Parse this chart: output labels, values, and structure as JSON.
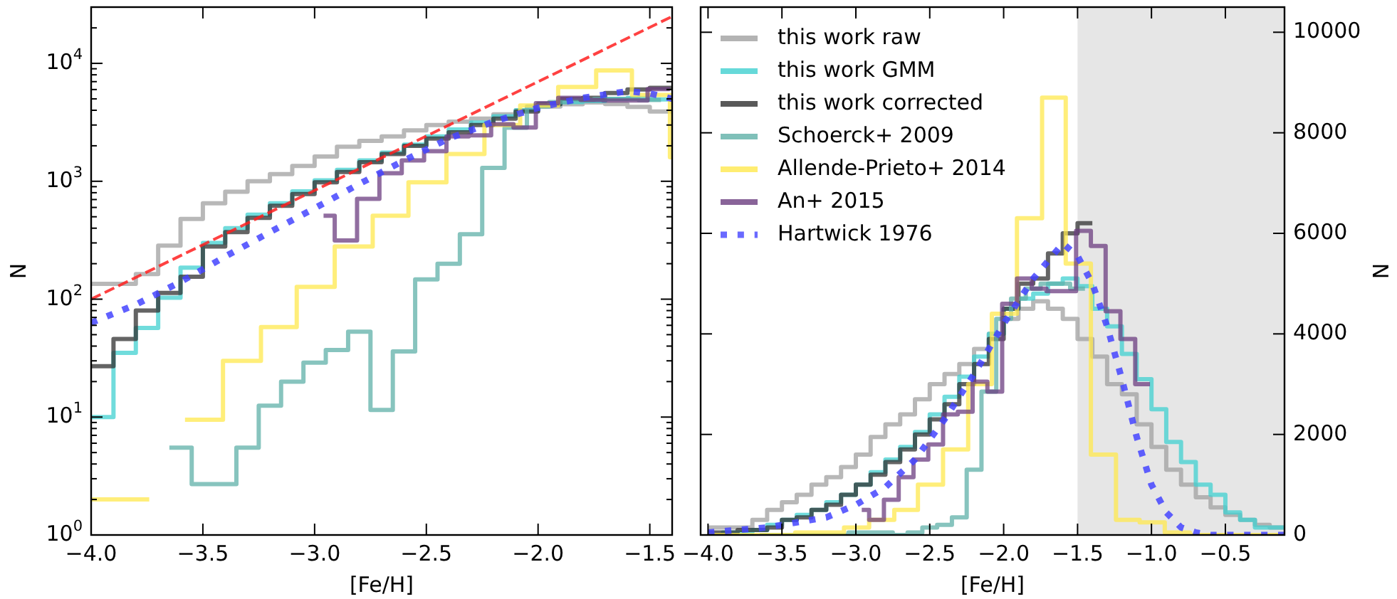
{
  "chart_data": [
    {
      "type": "step",
      "xlabel": "[Fe/H]",
      "ylabel": "N",
      "log": true,
      "xlim": [
        -4.0,
        -1.4
      ],
      "ylim": [
        1,
        30000
      ],
      "xticks": [
        {
          "value": -4.0,
          "label": "−4.0"
        },
        {
          "value": -3.5,
          "label": "−3.5"
        },
        {
          "value": -3.0,
          "label": "−3.0"
        },
        {
          "value": -2.5,
          "label": "−2.5"
        },
        {
          "value": -2.0,
          "label": "−2.0"
        },
        {
          "value": -1.5,
          "label": "−1.5"
        }
      ],
      "yticks": [
        {
          "value": 1,
          "label": "10$^{0}$"
        },
        {
          "value": 2,
          "label": null
        },
        {
          "value": 3,
          "label": null
        },
        {
          "value": 4,
          "label": null
        },
        {
          "value": 5,
          "label": null
        },
        {
          "value": 6,
          "label": null
        },
        {
          "value": 7,
          "label": null
        },
        {
          "value": 8,
          "label": null
        },
        {
          "value": 9,
          "label": null
        },
        {
          "value": 10,
          "label": "10$^{1}$"
        },
        {
          "value": 20,
          "label": null
        },
        {
          "value": 30,
          "label": null
        },
        {
          "value": 40,
          "label": null
        },
        {
          "value": 50,
          "label": null
        },
        {
          "value": 60,
          "label": null
        },
        {
          "value": 70,
          "label": null
        },
        {
          "value": 80,
          "label": null
        },
        {
          "value": 90,
          "label": null
        },
        {
          "value": 100,
          "label": "10$^{2}$"
        },
        {
          "value": 200,
          "label": null
        },
        {
          "value": 300,
          "label": null
        },
        {
          "value": 400,
          "label": null
        },
        {
          "value": 500,
          "label": null
        },
        {
          "value": 600,
          "label": null
        },
        {
          "value": 700,
          "label": null
        },
        {
          "value": 800,
          "label": null
        },
        {
          "value": 900,
          "label": null
        },
        {
          "value": 1000,
          "label": "10$^{3}$"
        },
        {
          "value": 2000,
          "label": null
        },
        {
          "value": 3000,
          "label": null
        },
        {
          "value": 4000,
          "label": null
        },
        {
          "value": 5000,
          "label": null
        },
        {
          "value": 6000,
          "label": null
        },
        {
          "value": 7000,
          "label": null
        },
        {
          "value": 8000,
          "label": null
        },
        {
          "value": 9000,
          "label": null
        },
        {
          "value": 10000,
          "label": "10$^{4}$"
        },
        {
          "value": 20000,
          "label": null
        },
        {
          "value": 30000,
          "label": null
        }
      ],
      "series": [
        {
          "color": "#a0a0a0",
          "x": [
            -4.0,
            -3.9,
            -3.8,
            -3.7,
            -3.6,
            -3.5,
            -3.4,
            -3.3,
            -3.2,
            -3.1,
            -3.0,
            -2.9,
            -2.8,
            -2.7,
            -2.6,
            -2.5,
            -2.4,
            -2.3,
            -2.2,
            -2.1,
            -2.0,
            -1.9,
            -1.8,
            -1.7,
            -1.6,
            -1.5,
            -1.4
          ],
          "values": [
            135,
            135,
            163,
            285,
            480,
            650,
            815,
            1000,
            1150,
            1350,
            1620,
            1960,
            2200,
            2400,
            2700,
            3000,
            3200,
            3400,
            3700,
            4000,
            4300,
            4500,
            4660,
            4520,
            4280,
            3900,
            3900
          ]
        },
        {
          "color": "#40d0d0",
          "x": [
            -4.0,
            -3.9,
            -3.8,
            -3.7,
            -3.6,
            -3.5,
            -3.4,
            -3.3,
            -3.2,
            -3.1,
            -3.0,
            -2.9,
            -2.8,
            -2.7,
            -2.6,
            -2.5,
            -2.4,
            -2.3,
            -2.2,
            -2.1,
            -2.0,
            -1.9,
            -1.8,
            -1.7,
            -1.6,
            -1.5,
            -1.4
          ],
          "values": [
            10,
            35,
            57,
            103,
            185,
            300,
            400,
            520,
            650,
            820,
            1020,
            1250,
            1500,
            1750,
            2050,
            2400,
            2750,
            3150,
            3550,
            4000,
            4500,
            4700,
            4800,
            5000,
            5090,
            4950,
            4950
          ]
        },
        {
          "color": "#303030",
          "x": [
            -4.0,
            -3.9,
            -3.8,
            -3.7,
            -3.6,
            -3.5,
            -3.4,
            -3.3,
            -3.2,
            -3.1,
            -3.0,
            -2.9,
            -2.8,
            -2.7,
            -2.6,
            -2.5,
            -2.4,
            -2.3,
            -2.2,
            -2.1,
            -2.0,
            -1.9,
            -1.8,
            -1.7,
            -1.6,
            -1.5,
            -1.4
          ],
          "values": [
            27,
            46,
            80,
            113,
            155,
            280,
            370,
            490,
            620,
            780,
            980,
            1200,
            1450,
            1700,
            2000,
            2300,
            2600,
            3000,
            3400,
            3900,
            4500,
            5000,
            5100,
            5600,
            6000,
            6200,
            6200
          ]
        },
        {
          "color": "#5fb0a8",
          "x": [
            -3.65,
            -3.55,
            -3.45,
            -3.35,
            -3.25,
            -3.15,
            -3.05,
            -2.95,
            -2.85,
            -2.75,
            -2.65,
            -2.55,
            -2.45,
            -2.35,
            -2.25,
            -2.15,
            -2.05,
            -1.95,
            -1.85,
            -1.75,
            -1.65,
            -1.55,
            -1.45
          ],
          "values": [
            5.5,
            2.7,
            2.7,
            5.5,
            12.5,
            20,
            29,
            37,
            53,
            11.5,
            36,
            147,
            200,
            355,
            1300,
            2850,
            4300,
            4700,
            4900,
            5000,
            5000,
            4900,
            4900
          ]
        },
        {
          "color": "#ffe84d",
          "x": [
            -4.0,
            -3.91,
            -3.74,
            -3.58,
            -3.41,
            -3.24,
            -3.08,
            -2.91,
            -2.74,
            -2.58,
            -2.41,
            -2.24,
            -2.08,
            -1.91,
            -1.74,
            -1.58,
            -1.41,
            -1.4
          ],
          "values": [
            2,
            2,
            null,
            9.5,
            30,
            58,
            127,
            280,
            510,
            980,
            1700,
            3000,
            4400,
            6300,
            8700,
            5400,
            1600,
            1600
          ]
        },
        {
          "color": "#6c3d80",
          "x": [
            -2.96,
            -2.91,
            -2.81,
            -2.71,
            -2.61,
            -2.51,
            -2.41,
            -2.31,
            -2.21,
            -2.11,
            -2.01,
            -1.91,
            -1.81,
            -1.71,
            -1.61,
            -1.51,
            -1.41
          ],
          "values": [
            510,
            315,
            710,
            1170,
            1500,
            1800,
            2400,
            2450,
            3050,
            2860,
            4600,
            5100,
            4900,
            4850,
            4850,
            6040,
            6040
          ]
        },
        {
          "type": "line",
          "line_style": "dotted",
          "color": "#4444ff",
          "x": [
            -4.0,
            -3.8,
            -3.6,
            -3.4,
            -3.2,
            -3.0,
            -2.8,
            -2.6,
            -2.4,
            -2.2,
            -2.0,
            -1.8,
            -1.6,
            -1.5,
            -1.4
          ],
          "values": [
            63,
            90,
            140,
            230,
            370,
            590,
            950,
            1500,
            2300,
            3200,
            4200,
            5100,
            5800,
            5560,
            5000
          ]
        },
        {
          "type": "line",
          "line_style": "dashed",
          "color": "#ff2020",
          "x": [
            -4.0,
            -1.4
          ],
          "values": [
            100,
            25000
          ]
        }
      ]
    },
    {
      "type": "step",
      "xlabel": "[Fe/H]",
      "y2label": "N",
      "legend": "top left",
      "xlim": [
        -4.05,
        -0.1
      ],
      "y2lim": [
        0,
        10500
      ],
      "xticks": [
        {
          "value": -4.0,
          "label": "−4.0"
        },
        {
          "value": -3.5,
          "label": "−3.5"
        },
        {
          "value": -3.0,
          "label": "−3.0"
        },
        {
          "value": -2.5,
          "label": "−2.5"
        },
        {
          "value": -2.0,
          "label": "−2.0"
        },
        {
          "value": -1.5,
          "label": "−1.5"
        },
        {
          "value": -1.0,
          "label": "−1.0"
        },
        {
          "value": -0.5,
          "label": "−0.5"
        }
      ],
      "y2ticks": [
        0,
        2000,
        4000,
        6000,
        8000,
        10000
      ],
      "bands": [
        {
          "axis": "x",
          "from": -1.5,
          "to": -0.1,
          "color": "#e6e6e6"
        }
      ],
      "series": [
        {
          "name": "this work raw",
          "axis": "y2",
          "color": "#a0a0a0",
          "x": [
            -4.0,
            -3.9,
            -3.8,
            -3.7,
            -3.6,
            -3.5,
            -3.4,
            -3.3,
            -3.2,
            -3.1,
            -3.0,
            -2.9,
            -2.8,
            -2.7,
            -2.6,
            -2.5,
            -2.4,
            -2.3,
            -2.2,
            -2.1,
            -2.0,
            -1.9,
            -1.8,
            -1.7,
            -1.6,
            -1.5,
            -1.4,
            -1.3,
            -1.2,
            -1.1,
            -1.0,
            -0.9,
            -0.8,
            -0.7,
            -0.6,
            -0.5,
            -0.4,
            -0.3,
            -0.2,
            -0.1
          ],
          "values": [
            150,
            150,
            150,
            300,
            500,
            650,
            800,
            1000,
            1150,
            1350,
            1600,
            1950,
            2200,
            2400,
            2700,
            3000,
            3200,
            3400,
            3700,
            4000,
            4300,
            4500,
            4650,
            4500,
            4300,
            3900,
            3550,
            3000,
            2800,
            2200,
            1750,
            1300,
            1000,
            750,
            550,
            400,
            300,
            200,
            150,
            150
          ]
        },
        {
          "name": "this work GMM",
          "axis": "y2",
          "color": "#40d0d0",
          "x": [
            -4.0,
            -3.9,
            -3.8,
            -3.7,
            -3.6,
            -3.5,
            -3.4,
            -3.3,
            -3.2,
            -3.1,
            -3.0,
            -2.9,
            -2.8,
            -2.7,
            -2.6,
            -2.5,
            -2.4,
            -2.3,
            -2.2,
            -2.1,
            -2.0,
            -1.9,
            -1.8,
            -1.7,
            -1.6,
            -1.5,
            -1.4,
            -1.3,
            -1.2,
            -1.1,
            -1.0,
            -0.9,
            -0.8,
            -0.7,
            -0.6,
            -0.5,
            -0.4,
            -0.3,
            -0.2,
            -0.1
          ],
          "values": [
            0,
            50,
            50,
            100,
            200,
            300,
            400,
            500,
            650,
            800,
            1000,
            1250,
            1500,
            1750,
            2050,
            2400,
            2750,
            3150,
            3550,
            4000,
            4500,
            4700,
            4800,
            5000,
            5100,
            4950,
            4500,
            4150,
            3600,
            3100,
            2500,
            1850,
            1450,
            1000,
            800,
            450,
            300,
            150,
            150,
            150
          ]
        },
        {
          "name": "this work corrected",
          "axis": "y2",
          "color": "#303030",
          "x": [
            -4.0,
            -3.9,
            -3.8,
            -3.7,
            -3.6,
            -3.5,
            -3.4,
            -3.3,
            -3.2,
            -3.1,
            -3.0,
            -2.9,
            -2.8,
            -2.7,
            -2.6,
            -2.5,
            -2.4,
            -2.3,
            -2.2,
            -2.1,
            -2.0,
            -1.9,
            -1.8,
            -1.7,
            -1.6,
            -1.5,
            -1.4
          ],
          "values": [
            50,
            50,
            100,
            100,
            150,
            300,
            350,
            500,
            600,
            800,
            1000,
            1200,
            1450,
            1700,
            2000,
            2300,
            2600,
            3000,
            3400,
            3900,
            4500,
            5000,
            5100,
            5600,
            6000,
            6200,
            6200
          ]
        },
        {
          "name": "Schoerck+ 2009",
          "axis": "y2",
          "color": "#5fb0a8",
          "x": [
            -3.65,
            -3.55,
            -3.45,
            -3.35,
            -3.25,
            -3.15,
            -3.05,
            -2.95,
            -2.85,
            -2.75,
            -2.65,
            -2.55,
            -2.45,
            -2.35,
            -2.25,
            -2.15,
            -2.05,
            -1.95,
            -1.85,
            -1.75,
            -1.65,
            -1.55,
            -1.45
          ],
          "values": [
            0,
            0,
            0,
            0,
            0,
            0,
            50,
            50,
            50,
            0,
            50,
            150,
            200,
            350,
            1300,
            2850,
            4300,
            4700,
            4900,
            5000,
            5000,
            4900,
            4900
          ]
        },
        {
          "name": "Allende-Prieto+ 2014",
          "axis": "y2",
          "color": "#ffe84d",
          "x": [
            -4.0,
            -3.91,
            -3.74,
            -3.58,
            -3.41,
            -3.24,
            -3.08,
            -2.91,
            -2.74,
            -2.58,
            -2.41,
            -2.24,
            -2.08,
            -1.91,
            -1.74,
            -1.58,
            -1.41,
            -1.24,
            -1.08,
            -0.91,
            -0.74,
            -0.58,
            -0.41,
            -0.24,
            -0.1
          ],
          "values": [
            0,
            0,
            0,
            0,
            50,
            50,
            150,
            300,
            500,
            1000,
            1700,
            3000,
            4400,
            6300,
            8700,
            5400,
            1600,
            300,
            250,
            50,
            0,
            0,
            0,
            0,
            0
          ]
        },
        {
          "name": "An+ 2015",
          "axis": "y2",
          "color": "#6c3d80",
          "x": [
            -2.96,
            -2.91,
            -2.81,
            -2.71,
            -2.61,
            -2.51,
            -2.41,
            -2.31,
            -2.21,
            -2.11,
            -2.01,
            -1.91,
            -1.81,
            -1.71,
            -1.61,
            -1.51,
            -1.41,
            -1.31,
            -1.21,
            -1.11,
            -1.01
          ],
          "values": [
            500,
            300,
            700,
            1150,
            1500,
            1800,
            2400,
            2450,
            3050,
            2850,
            4600,
            5100,
            4900,
            4850,
            4850,
            6050,
            5750,
            4450,
            3900,
            3000,
            3000
          ]
        },
        {
          "name": "Hartwick 1976",
          "axis": "y2",
          "type": "line",
          "line_style": "dotted",
          "color": "#4444ff",
          "x": [
            -4.0,
            -3.8,
            -3.6,
            -3.4,
            -3.2,
            -3.0,
            -2.8,
            -2.6,
            -2.4,
            -2.2,
            -2.0,
            -1.8,
            -1.6,
            -1.5,
            -1.4,
            -1.3,
            -1.2,
            -1.1,
            -1.0,
            -0.9,
            -0.8,
            -0.7,
            -0.6,
            -0.4,
            -0.1
          ],
          "values": [
            50,
            100,
            150,
            250,
            350,
            600,
            950,
            1500,
            2300,
            3200,
            4200,
            5100,
            5800,
            5550,
            5000,
            4150,
            3100,
            1950,
            1000,
            450,
            150,
            50,
            0,
            0,
            0
          ]
        }
      ]
    }
  ]
}
